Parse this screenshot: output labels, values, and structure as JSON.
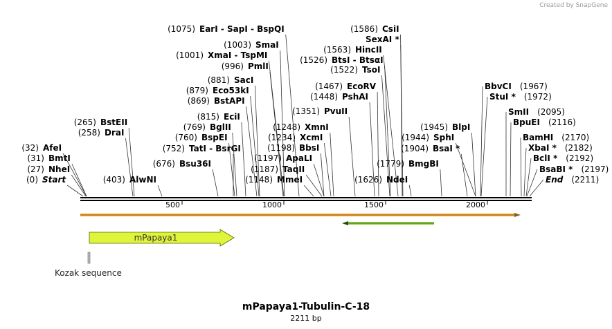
{
  "watermark": "Created by SnapGene",
  "sites": [
    {
      "position": "(0)",
      "name": "Start"
    },
    {
      "position": "(27)",
      "name": "NheI"
    },
    {
      "position": "(31)",
      "name": "BmtI"
    },
    {
      "position": "(32)",
      "name": "AfeI"
    },
    {
      "position": "(258)",
      "name": "DraI"
    },
    {
      "position": "(265)",
      "name": "BstEII"
    },
    {
      "position": "(403)",
      "name": "AlwNI"
    },
    {
      "position": "(676)",
      "name": "Bsu36I"
    },
    {
      "position": "(752)",
      "name": "TatI  -  BsrGI"
    },
    {
      "position": "(760)",
      "name": "BspEI"
    },
    {
      "position": "(769)",
      "name": "BglII"
    },
    {
      "position": "(815)",
      "name": "EciI"
    },
    {
      "position": "(869)",
      "name": "BstAPI"
    },
    {
      "position": "(879)",
      "name": "Eco53kI"
    },
    {
      "position": "(881)",
      "name": "SacI"
    },
    {
      "position": "(996)",
      "name": "PmlI"
    },
    {
      "position": "(1001)",
      "name": "XmaI  -  TspMI"
    },
    {
      "position": "(1003)",
      "name": "SmaI"
    },
    {
      "position": "(1075)",
      "name": "EarI  -  SapI  -  BspQI"
    },
    {
      "position": "(1148)",
      "name": "MmeI"
    },
    {
      "position": "(1187)",
      "name": "TaqII"
    },
    {
      "position": "(1197)",
      "name": "ApaLI"
    },
    {
      "position": "(1198)",
      "name": "BbsI"
    },
    {
      "position": "(1234)",
      "name": "XcmI"
    },
    {
      "position": "(1248)",
      "name": "XmnI"
    },
    {
      "position": "(1351)",
      "name": "PvuII"
    },
    {
      "position": "(1448)",
      "name": "PshAI"
    },
    {
      "position": "(1467)",
      "name": "EcoRV"
    },
    {
      "position": "(1522)",
      "name": "TsoI"
    },
    {
      "position": "(1526)",
      "name": "BtsI  -  BtsαI"
    },
    {
      "position": "(1563)",
      "name": "HincII"
    },
    {
      "name": "SexAI *"
    },
    {
      "position": "(1586)",
      "name": "CsiI"
    },
    {
      "position": "(1626)",
      "name": "NdeI"
    },
    {
      "position": "(1779)",
      "name": "BmgBI"
    },
    {
      "position": "(1904)",
      "name": "BsaI *"
    },
    {
      "position": "(1944)",
      "name": "SphI"
    },
    {
      "position": "(1945)",
      "name": "BlpI"
    },
    {
      "position": "(1967)",
      "name": "BbvCI"
    },
    {
      "position": "(1972)",
      "name": "StuI *"
    },
    {
      "position": "(2095)",
      "name": "SmII"
    },
    {
      "position": "(2116)",
      "name": "BpuEI"
    },
    {
      "position": "(2170)",
      "name": "BamHI"
    },
    {
      "position": "(2182)",
      "name": "XbaI *"
    },
    {
      "position": "(2192)",
      "name": "BclI *"
    },
    {
      "position": "(2197)",
      "name": "BsaBI *"
    },
    {
      "position": "(2211)",
      "name": "End"
    }
  ],
  "ruler": [
    "500",
    "1000",
    "1500",
    "2000"
  ],
  "features": [
    {
      "name": "mPapaya1"
    },
    {
      "name": "Kozak sequence"
    }
  ],
  "title": "mPapaya1-Tubulin-C-18",
  "subtitle": "2211 bp"
}
